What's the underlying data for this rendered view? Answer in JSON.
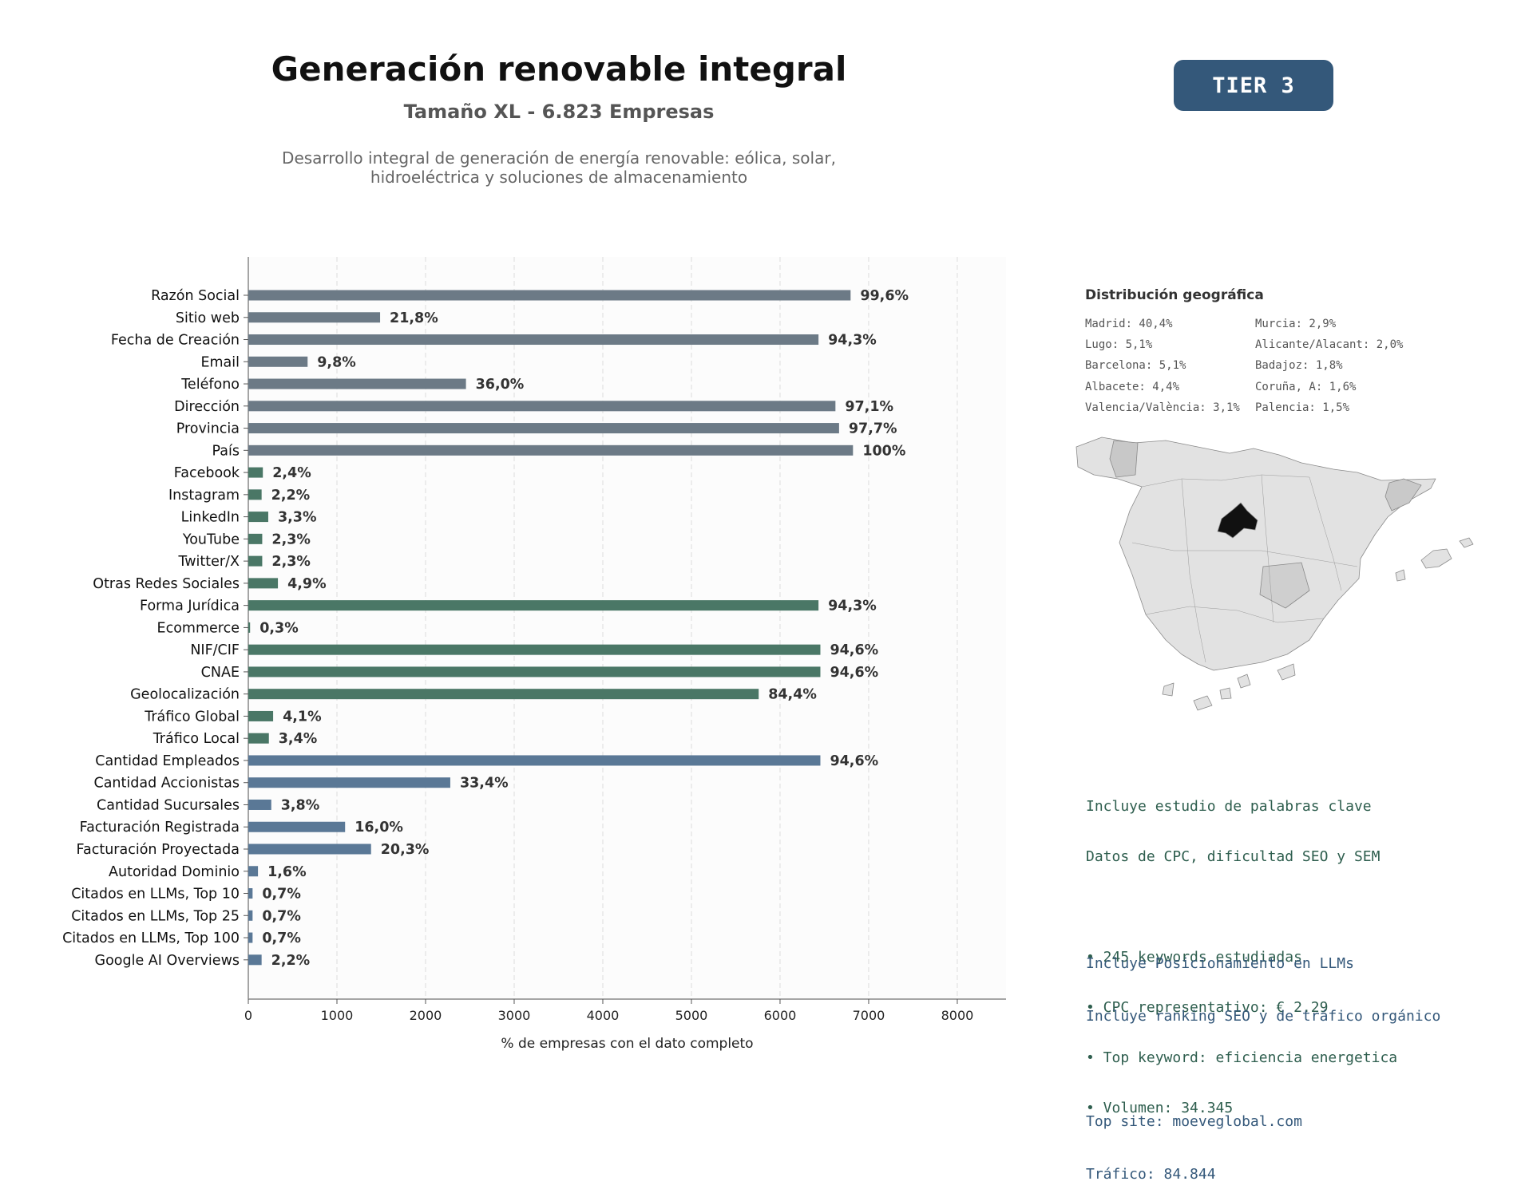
{
  "header": {
    "title": "Generación renovable integral",
    "subtitle": "Tamaño XL - 6.823 Empresas",
    "description_lines": [
      "Desarrollo integral de generación de energía renovable: eólica, solar,",
      "hidroeléctrica y soluciones de almacenamiento"
    ],
    "tier": "TIER 3"
  },
  "chart_data": {
    "type": "bar",
    "orientation": "horizontal",
    "xlabel": "% de empresas con el dato completo",
    "xlim": [
      0,
      8550
    ],
    "xticks": [
      0,
      1000,
      2000,
      3000,
      4000,
      5000,
      6000,
      7000,
      8000
    ],
    "grid": true,
    "colors": {
      "contact": "#6c7a86",
      "digital": "#4a7766",
      "business": "#5a7896"
    },
    "categories": [
      "Razón Social",
      "Sitio web",
      "Fecha de Creación",
      "Email",
      "Teléfono",
      "Dirección",
      "Provincia",
      "País",
      "Facebook",
      "Instagram",
      "LinkedIn",
      "YouTube",
      "Twitter/X",
      "Otras Redes Sociales",
      "Forma Jurídica",
      "Ecommerce",
      "NIF/CIF",
      "CNAE",
      "Geolocalización",
      "Tráfico Global",
      "Tráfico Local",
      "Cantidad Empleados",
      "Cantidad Accionistas",
      "Cantidad Sucursales",
      "Facturación Registrada",
      "Facturación Proyectada",
      "Autoridad Dominio",
      "Citados en LLMs, Top 10",
      "Citados en LLMs, Top 25",
      "Citados en LLMs, Top 100",
      "Google AI Overviews"
    ],
    "values": [
      6796,
      1487,
      6434,
      669,
      2456,
      6625,
      6666,
      6823,
      164,
      150,
      225,
      157,
      157,
      334,
      6434,
      20,
      6455,
      6455,
      5759,
      280,
      232,
      6455,
      2279,
      259,
      1092,
      1385,
      109,
      48,
      48,
      48,
      150
    ],
    "labels": [
      "99,6%",
      "21,8%",
      "94,3%",
      "9,8%",
      "36,0%",
      "97,1%",
      "97,7%",
      "100%",
      "2,4%",
      "2,2%",
      "3,3%",
      "2,3%",
      "2,3%",
      "4,9%",
      "94,3%",
      "0,3%",
      "94,6%",
      "94,6%",
      "84,4%",
      "4,1%",
      "3,4%",
      "94,6%",
      "33,4%",
      "3,8%",
      "16,0%",
      "20,3%",
      "1,6%",
      "0,7%",
      "0,7%",
      "0,7%",
      "2,2%"
    ],
    "groups": [
      "contact",
      "contact",
      "contact",
      "contact",
      "contact",
      "contact",
      "contact",
      "contact",
      "digital",
      "digital",
      "digital",
      "digital",
      "digital",
      "digital",
      "digital",
      "digital",
      "digital",
      "digital",
      "digital",
      "digital",
      "digital",
      "business",
      "business",
      "business",
      "business",
      "business",
      "business",
      "business",
      "business",
      "business",
      "business"
    ]
  },
  "geo": {
    "title": "Distribución geográfica",
    "items": [
      "Madrid: 40,4%",
      "Murcia: 2,9%",
      "Lugo: 5,1%",
      "Alicante/Alacant: 2,0%",
      "Barcelona: 5,1%",
      "Badajoz: 1,8%",
      "Albacete: 4,4%",
      "Coruña, A: 1,6%",
      "Valencia/València: 3,1%",
      "Palencia: 1,5%"
    ]
  },
  "keywords": {
    "lines": [
      "Incluye estudio de palabras clave",
      "Datos de CPC, dificultad SEO y SEM",
      "",
      "• 245 keywords estudiadas",
      "• CPC representativo: € 2.29",
      "• Top keyword: eficiencia energetica",
      "• Volumen: 34.345"
    ]
  },
  "llm": {
    "lines": [
      "Incluye Posicionamiento en LLMs",
      "Incluye ranking SEO y de tráfico orgánico",
      "",
      "Top site: moeveglobal.com",
      "Tráfico: 84.844"
    ]
  }
}
